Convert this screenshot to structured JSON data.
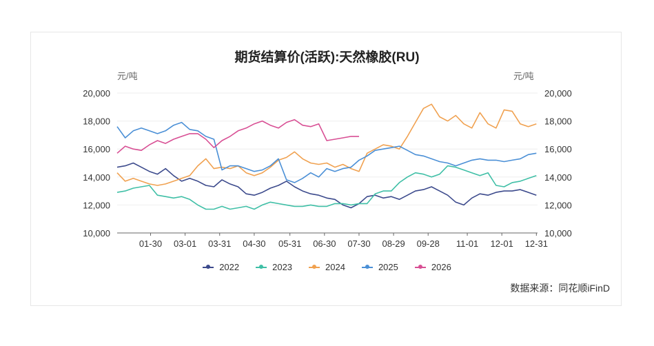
{
  "chart_data": {
    "type": "line",
    "title": "期货结算价(活跃):天然橡胶(RU)",
    "ylabel_left": "元/吨",
    "ylabel_right": "元/吨",
    "ylim": [
      10000,
      20000
    ],
    "y_ticks": [
      "10,000",
      "12,000",
      "14,000",
      "16,000",
      "18,000",
      "20,000"
    ],
    "x_ticks": [
      "01-30",
      "03-01",
      "03-31",
      "04-30",
      "05-31",
      "06-30",
      "07-30",
      "08-29",
      "09-28",
      "11-01",
      "12-01",
      "12-31"
    ],
    "x_tick_days": [
      30,
      60,
      90,
      120,
      151,
      181,
      211,
      241,
      271,
      305,
      335,
      365
    ],
    "x_range_days": [
      1,
      366
    ],
    "grid": true,
    "legend_position": "bottom",
    "source": "数据来源：同花顺iFinD",
    "series": [
      {
        "name": "2022",
        "color": "#3c4a8c",
        "x": [
          1,
          8,
          15,
          22,
          29,
          36,
          43,
          50,
          57,
          64,
          71,
          78,
          85,
          92,
          99,
          106,
          113,
          120,
          127,
          134,
          141,
          148,
          155,
          162,
          169,
          176,
          183,
          190,
          197,
          204,
          211,
          218,
          225,
          232,
          239,
          246,
          253,
          260,
          267,
          274,
          281,
          288,
          295,
          302,
          309,
          316,
          323,
          330,
          337,
          344,
          351,
          358,
          365
        ],
        "values": [
          14700,
          14800,
          15000,
          14700,
          14400,
          14200,
          14600,
          14100,
          13700,
          13900,
          13700,
          13400,
          13300,
          13800,
          13500,
          13300,
          12800,
          12700,
          12900,
          13200,
          13400,
          13700,
          13300,
          13000,
          12800,
          12700,
          12500,
          12400,
          12000,
          11800,
          12100,
          12600,
          12700,
          12500,
          12600,
          12400,
          12700,
          13000,
          13100,
          13300,
          13000,
          12700,
          12200,
          12000,
          12500,
          12800,
          12700,
          12900,
          13000,
          13000,
          13100,
          12900,
          12700
        ]
      },
      {
        "name": "2023",
        "color": "#3fbfa6",
        "x": [
          1,
          8,
          15,
          22,
          29,
          36,
          43,
          50,
          57,
          64,
          71,
          78,
          85,
          92,
          99,
          106,
          113,
          120,
          127,
          134,
          141,
          148,
          155,
          162,
          169,
          176,
          183,
          190,
          197,
          204,
          211,
          218,
          225,
          232,
          239,
          246,
          253,
          260,
          267,
          274,
          281,
          288,
          295,
          302,
          309,
          316,
          323,
          330,
          337,
          344,
          351,
          358,
          365
        ],
        "values": [
          12900,
          13000,
          13200,
          13300,
          13400,
          12700,
          12600,
          12500,
          12600,
          12400,
          12000,
          11700,
          11700,
          11900,
          11700,
          11800,
          11900,
          11700,
          12000,
          12200,
          12100,
          12000,
          11900,
          11900,
          12000,
          11900,
          11900,
          12100,
          12100,
          12000,
          12100,
          12100,
          12800,
          13000,
          13000,
          13600,
          14000,
          14300,
          14200,
          14000,
          14200,
          14800,
          14700,
          14500,
          14300,
          14100,
          14300,
          13400,
          13300,
          13600,
          13700,
          13900,
          14100
        ]
      },
      {
        "name": "2024",
        "color": "#f0a150",
        "x": [
          1,
          8,
          15,
          22,
          29,
          36,
          43,
          50,
          57,
          64,
          71,
          78,
          85,
          92,
          99,
          106,
          113,
          120,
          127,
          134,
          141,
          148,
          155,
          162,
          169,
          176,
          183,
          190,
          197,
          204,
          211,
          218,
          225,
          232,
          239,
          246,
          253,
          260,
          267,
          274,
          281,
          288,
          295,
          302,
          309,
          316,
          323,
          330,
          337,
          344,
          351,
          358,
          365
        ],
        "values": [
          14300,
          13700,
          13900,
          13700,
          13500,
          13400,
          13500,
          13700,
          13900,
          14100,
          14800,
          15300,
          14600,
          14700,
          14600,
          14800,
          14300,
          14100,
          14300,
          14700,
          15200,
          15400,
          15800,
          15300,
          15000,
          14900,
          15000,
          14700,
          14900,
          14600,
          14400,
          15700,
          16000,
          16300,
          16200,
          16000,
          16900,
          17900,
          18900,
          19200,
          18300,
          18000,
          18400,
          17800,
          17500,
          18600,
          17800,
          17500,
          18800,
          18700,
          17800,
          17600,
          17800
        ]
      },
      {
        "name": "2025",
        "color": "#4a8fd6",
        "x": [
          1,
          8,
          15,
          22,
          29,
          36,
          43,
          50,
          57,
          64,
          71,
          78,
          85,
          92,
          99,
          106,
          113,
          120,
          127,
          134,
          141,
          148,
          155,
          162,
          169,
          176,
          183,
          190,
          197,
          204,
          211,
          218,
          225,
          232,
          239,
          246,
          253,
          260,
          267,
          274,
          281,
          288,
          295,
          302,
          309,
          316,
          323,
          330,
          337,
          344,
          351,
          358,
          365
        ],
        "values": [
          17600,
          16800,
          17300,
          17500,
          17300,
          17100,
          17300,
          17700,
          17900,
          17400,
          17300,
          16900,
          16700,
          14500,
          14800,
          14800,
          14600,
          14400,
          14500,
          14800,
          15300,
          13800,
          13600,
          13900,
          14300,
          14000,
          14600,
          14400,
          14600,
          14700,
          15200,
          15500,
          15900,
          16000,
          16100,
          16200,
          15900,
          15600,
          15500,
          15300,
          15100,
          15000,
          14800,
          15000,
          15200,
          15300,
          15200,
          15200,
          15100,
          15200,
          15300,
          15600,
          15700
        ]
      },
      {
        "name": "2026",
        "color": "#d84f94",
        "x": [
          1,
          8,
          15,
          22,
          29,
          36,
          43,
          50,
          57,
          64,
          71,
          78,
          85,
          92,
          99,
          106,
          113,
          120,
          127,
          134,
          141,
          148,
          155,
          162,
          169,
          176,
          183,
          190,
          197,
          204,
          211
        ],
        "values": [
          15700,
          16200,
          16000,
          15900,
          16300,
          16600,
          16400,
          16700,
          16900,
          17100,
          17100,
          16700,
          16100,
          16600,
          16900,
          17300,
          17500,
          17800,
          18000,
          17700,
          17500,
          17900,
          18100,
          17700,
          17600,
          17800,
          16600,
          16700,
          16800,
          16900,
          16900
        ]
      }
    ]
  }
}
